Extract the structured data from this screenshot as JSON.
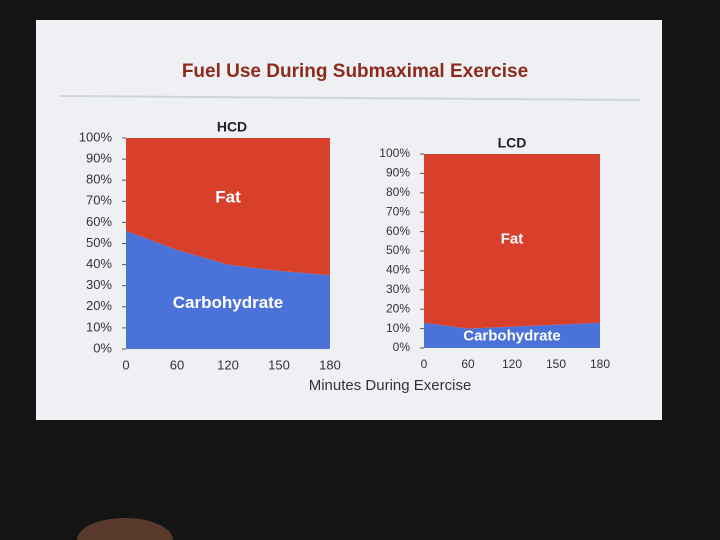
{
  "title": "Fuel Use During Submaximal Exercise",
  "x_label": "Minutes During Exercise",
  "chart_data": [
    {
      "type": "stacked-area",
      "title": "HCD",
      "categories": [
        "0",
        "60",
        "120",
        "150",
        "180"
      ],
      "series": [
        {
          "name": "Carbohydrate",
          "color": "#4a72d8",
          "values": [
            56,
            47,
            40,
            37,
            35
          ]
        },
        {
          "name": "Fat",
          "color": "#d9402c",
          "values": [
            44,
            53,
            60,
            63,
            65
          ]
        }
      ],
      "ylim": [
        0,
        100
      ],
      "yticks": [
        {
          "value": 0,
          "label": "0%"
        },
        {
          "value": 10,
          "label": "10%"
        },
        {
          "value": 20,
          "label": "20%"
        },
        {
          "value": 30,
          "label": "30%"
        },
        {
          "value": 40,
          "label": "40%"
        },
        {
          "value": 50,
          "label": "50%"
        },
        {
          "value": 60,
          "label": "60%"
        },
        {
          "value": 70,
          "label": "70%"
        },
        {
          "value": 80,
          "label": "80%"
        },
        {
          "value": 90,
          "label": "90%"
        },
        {
          "value": 100,
          "label": "100%"
        }
      ]
    },
    {
      "type": "stacked-area",
      "title": "LCD",
      "categories": [
        "0",
        "60",
        "120",
        "150",
        "180"
      ],
      "series": [
        {
          "name": "Carbohydrate",
          "color": "#4a72d8",
          "values": [
            13,
            10,
            11,
            12,
            13
          ]
        },
        {
          "name": "Fat",
          "color": "#d9402c",
          "values": [
            87,
            90,
            89,
            88,
            87
          ]
        }
      ],
      "ylim": [
        0,
        100
      ],
      "yticks": [
        {
          "value": 0,
          "label": "0%"
        },
        {
          "value": 10,
          "label": "10%"
        },
        {
          "value": 20,
          "label": "20%"
        },
        {
          "value": 30,
          "label": "30%"
        },
        {
          "value": 40,
          "label": "40%"
        },
        {
          "value": 50,
          "label": "50%"
        },
        {
          "value": 60,
          "label": "60%"
        },
        {
          "value": 70,
          "label": "70%"
        },
        {
          "value": 80,
          "label": "80%"
        },
        {
          "value": 90,
          "label": "90%"
        },
        {
          "value": 100,
          "label": "100%"
        }
      ]
    }
  ]
}
